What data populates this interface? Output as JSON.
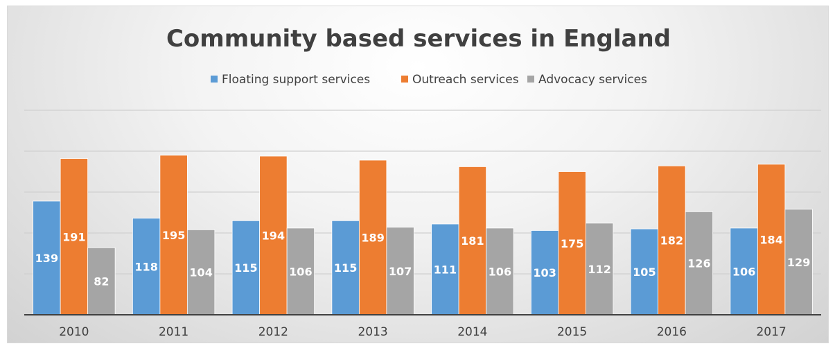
{
  "chart_data": {
    "type": "bar",
    "title": "Community based services in England",
    "categories": [
      "2010",
      "2011",
      "2012",
      "2013",
      "2014",
      "2015",
      "2016",
      "2017"
    ],
    "series": [
      {
        "name": "Floating support services",
        "color": "#5b9bd5",
        "values": [
          139,
          118,
          115,
          115,
          111,
          103,
          105,
          106
        ]
      },
      {
        "name": "Outreach services",
        "color": "#ed7d31",
        "values": [
          191,
          195,
          194,
          189,
          181,
          175,
          182,
          184
        ]
      },
      {
        "name": "Advocacy services",
        "color": "#a5a5a5",
        "values": [
          82,
          104,
          106,
          107,
          106,
          112,
          126,
          129
        ]
      }
    ],
    "ylim": [
      0,
      250
    ],
    "grid": true,
    "legend_position": "top",
    "data_labels": true
  }
}
